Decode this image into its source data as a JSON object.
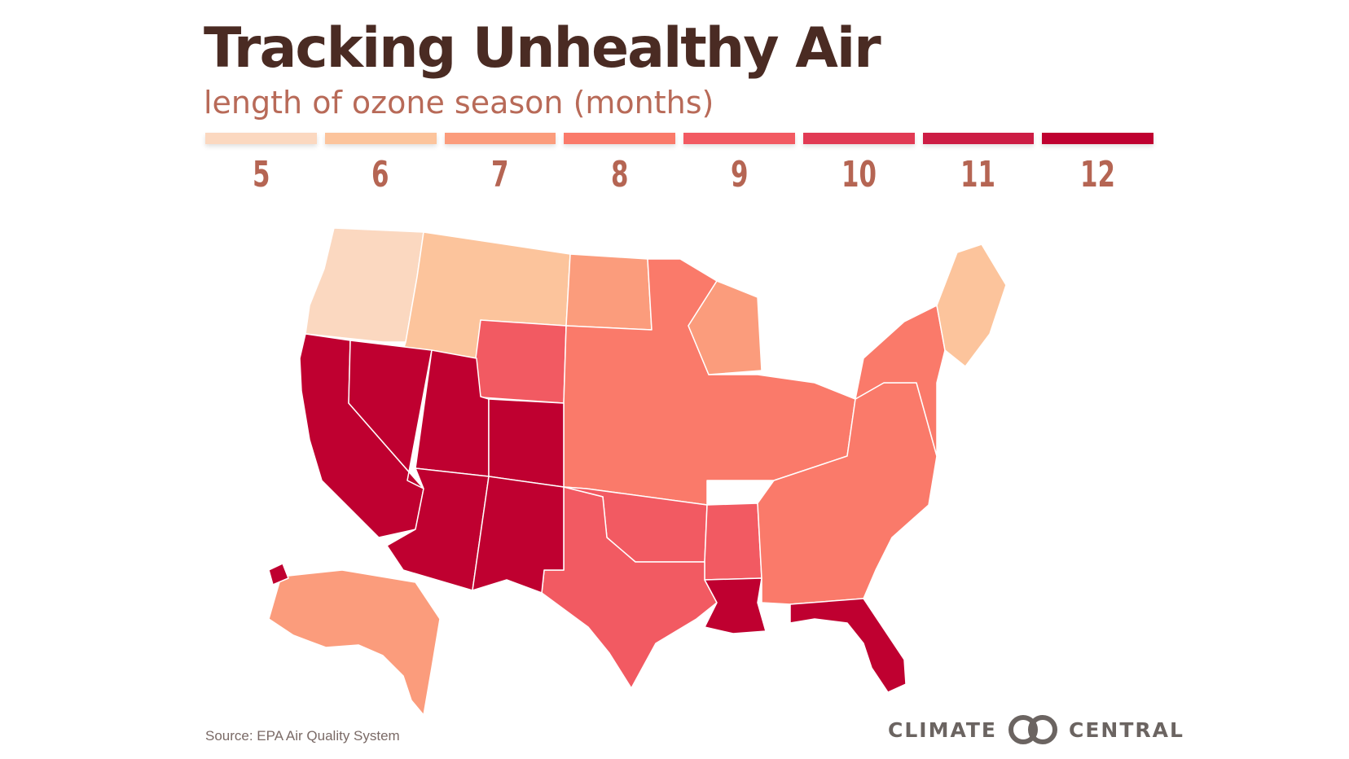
{
  "title": "Tracking Unhealthy Air",
  "subtitle": "length of ozone season (months)",
  "legend": [
    {
      "label": "5",
      "color": "#fbd8c0"
    },
    {
      "label": "6",
      "color": "#fcc49c"
    },
    {
      "label": "7",
      "color": "#fb9c7c"
    },
    {
      "label": "8",
      "color": "#fa7a6a"
    },
    {
      "label": "9",
      "color": "#f25a62"
    },
    {
      "label": "10",
      "color": "#e13a54"
    },
    {
      "label": "11",
      "color": "#cc1c44"
    },
    {
      "label": "12",
      "color": "#bf0030"
    }
  ],
  "regions": [
    {
      "name": "washington-oregon",
      "months": 5
    },
    {
      "name": "idaho-montana",
      "months": 6
    },
    {
      "name": "north-dakota",
      "months": 7
    },
    {
      "name": "wisconsin",
      "months": 7
    },
    {
      "name": "alaska",
      "months": 7
    },
    {
      "name": "wyoming",
      "months": 9
    },
    {
      "name": "texas",
      "months": 9
    },
    {
      "name": "oklahoma",
      "months": 9
    },
    {
      "name": "arkansas",
      "months": 9
    },
    {
      "name": "central-plains-midwest",
      "months": 8
    },
    {
      "name": "southeast",
      "months": 8
    },
    {
      "name": "northeast",
      "months": 8
    },
    {
      "name": "new-england",
      "months": 6
    },
    {
      "name": "california",
      "months": 12
    },
    {
      "name": "nevada",
      "months": 12
    },
    {
      "name": "utah",
      "months": 12
    },
    {
      "name": "colorado",
      "months": 12
    },
    {
      "name": "arizona",
      "months": 12
    },
    {
      "name": "new-mexico",
      "months": 12
    },
    {
      "name": "louisiana",
      "months": 12
    },
    {
      "name": "florida",
      "months": 12
    },
    {
      "name": "hawaii",
      "months": 12
    }
  ],
  "source": "Source: EPA Air Quality System",
  "brand": {
    "left": "CLIMATE",
    "right": "CENTRAL"
  }
}
